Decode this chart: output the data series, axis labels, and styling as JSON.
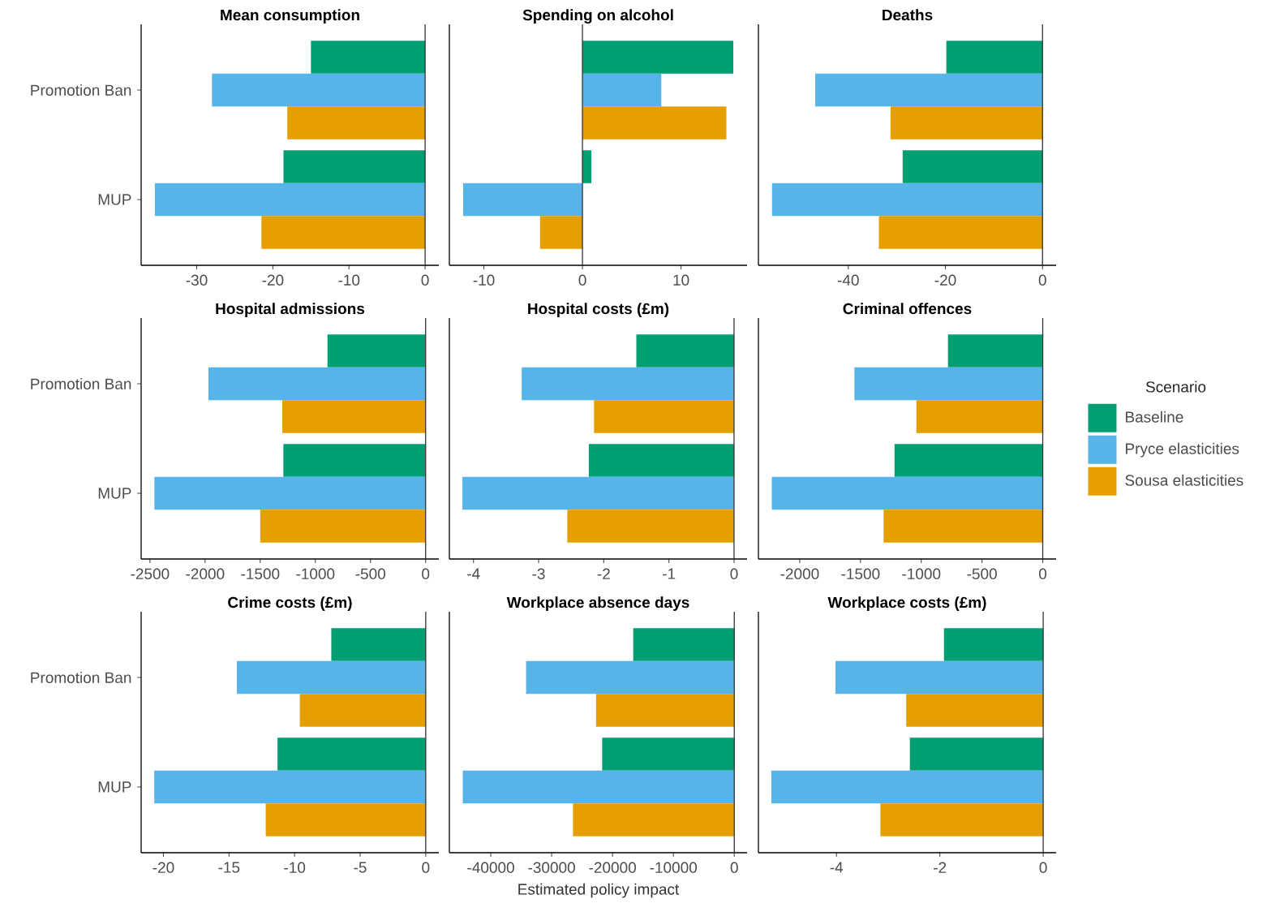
{
  "chart_data": [
    {
      "type": "bar",
      "orientation": "horizontal",
      "title": "Mean consumption",
      "categories": [
        "Promotion Ban",
        "MUP"
      ],
      "series": [
        {
          "color": "#009e73",
          "values": [
            -15.0,
            -18.6
          ]
        },
        {
          "color": "#56b4e9",
          "values": [
            -28.0,
            -35.5
          ]
        },
        {
          "color": "#e69f00",
          "values": [
            -18.1,
            -21.5
          ]
        }
      ],
      "xlim": [
        -37.3,
        1.8
      ],
      "xticks": [
        -30,
        -20,
        -10,
        0
      ],
      "ref_lines": [
        {
          "axis": "x",
          "value": 0,
          "color": "#333333"
        }
      ]
    },
    {
      "type": "bar",
      "orientation": "horizontal",
      "title": "Spending on alcohol",
      "categories": [
        null,
        null
      ],
      "series": [
        {
          "color": "#009e73",
          "values": [
            15.3,
            0.9
          ]
        },
        {
          "color": "#56b4e9",
          "values": [
            8.0,
            -12.1
          ]
        },
        {
          "color": "#e69f00",
          "values": [
            14.6,
            -4.3
          ]
        }
      ],
      "xlim": [
        -13.5,
        16.7
      ],
      "xticks": [
        -10,
        0,
        10
      ],
      "tick_labels": "x",
      "ref_lines": [
        {
          "axis": "x",
          "value": 0,
          "color": "#333333"
        }
      ]
    },
    {
      "type": "bar",
      "orientation": "horizontal",
      "title": "Deaths",
      "categories": [
        null,
        null
      ],
      "series": [
        {
          "color": "#009e73",
          "values": [
            -19.8,
            -28.8
          ]
        },
        {
          "color": "#56b4e9",
          "values": [
            -46.8,
            -55.7
          ]
        },
        {
          "color": "#e69f00",
          "values": [
            -31.3,
            -33.7
          ]
        }
      ],
      "xlim": [
        -58.5,
        2.8
      ],
      "xticks": [
        -40,
        -20,
        0
      ],
      "tick_labels": "x",
      "ref_lines": [
        {
          "axis": "x",
          "value": 0,
          "color": "#333333"
        }
      ]
    },
    {
      "type": "bar",
      "orientation": "horizontal",
      "title": "Hospital admissions",
      "categories": [
        "Promotion Ban",
        "MUP"
      ],
      "series": [
        {
          "color": "#009e73",
          "values": [
            -890,
            -1290
          ]
        },
        {
          "color": "#56b4e9",
          "values": [
            -1970,
            -2460
          ]
        },
        {
          "color": "#e69f00",
          "values": [
            -1300,
            -1500
          ]
        }
      ],
      "xlim": [
        -2580,
        120
      ],
      "xticks": [
        -2500,
        -2000,
        -1500,
        -1000,
        -500,
        0
      ],
      "ref_lines": [
        {
          "axis": "x",
          "value": 0,
          "color": "#333333"
        }
      ]
    },
    {
      "type": "bar",
      "orientation": "horizontal",
      "title": "Hospital costs (£m)",
      "categories": [
        null,
        null
      ],
      "series": [
        {
          "color": "#009e73",
          "values": [
            -1.5,
            -2.23
          ]
        },
        {
          "color": "#56b4e9",
          "values": [
            -3.26,
            -4.17
          ]
        },
        {
          "color": "#e69f00",
          "values": [
            -2.15,
            -2.56
          ]
        }
      ],
      "xlim": [
        -4.37,
        0.2
      ],
      "xticks": [
        -4,
        -3,
        -2,
        -1,
        0
      ],
      "tick_labels": "x",
      "ref_lines": [
        {
          "axis": "x",
          "value": 0,
          "color": "#333333"
        }
      ]
    },
    {
      "type": "bar",
      "orientation": "horizontal",
      "title": "Criminal offences",
      "categories": [
        null,
        null
      ],
      "series": [
        {
          "name": "Baseline",
          "color": "#009e73",
          "values": [
            -780,
            -1220
          ]
        },
        {
          "name": "Pryce elasticities",
          "color": "#56b4e9",
          "values": [
            -1550,
            -2230
          ]
        },
        {
          "name": "Sousa elasticities",
          "color": "#e69f00",
          "values": [
            -1040,
            -1310
          ]
        }
      ],
      "xlim": [
        -2340,
        110
      ],
      "xticks": [
        -2000,
        -1500,
        -1000,
        -500,
        0
      ],
      "tick_labels": "x",
      "legend": "right",
      "legend_title": "Scenario",
      "ref_lines": [
        {
          "axis": "x",
          "value": 0,
          "color": "#333333"
        }
      ]
    },
    {
      "type": "bar",
      "orientation": "horizontal",
      "title": "Crime costs (£m)",
      "categories": [
        "Promotion Ban",
        "MUP"
      ],
      "series": [
        {
          "color": "#009e73",
          "values": [
            -7.2,
            -11.3
          ]
        },
        {
          "color": "#56b4e9",
          "values": [
            -14.4,
            -20.7
          ]
        },
        {
          "color": "#e69f00",
          "values": [
            -9.6,
            -12.2
          ]
        }
      ],
      "xlim": [
        -21.7,
        1.0
      ],
      "xticks": [
        -20,
        -15,
        -10,
        -5,
        0
      ],
      "ref_lines": [
        {
          "axis": "x",
          "value": 0,
          "color": "#333333"
        }
      ]
    },
    {
      "type": "bar",
      "orientation": "horizontal",
      "title": "Workplace absence days",
      "xlabel": "Estimated policy impact",
      "categories": [
        null,
        null
      ],
      "series": [
        {
          "color": "#009e73",
          "values": [
            -16600,
            -21700
          ]
        },
        {
          "color": "#56b4e9",
          "values": [
            -34200,
            -44600
          ]
        },
        {
          "color": "#e69f00",
          "values": [
            -22700,
            -26500
          ]
        }
      ],
      "xlim": [
        -46800,
        2100
      ],
      "xticks": [
        -40000,
        -30000,
        -20000,
        -10000,
        0
      ],
      "tick_labels": "x",
      "ref_lines": [
        {
          "axis": "x",
          "value": 0,
          "color": "#333333"
        }
      ]
    },
    {
      "type": "bar",
      "orientation": "horizontal",
      "title": "Workplace costs (£m)",
      "categories": [
        null,
        null
      ],
      "series": [
        {
          "color": "#009e73",
          "values": [
            -1.92,
            -2.58
          ]
        },
        {
          "color": "#56b4e9",
          "values": [
            -4.02,
            -5.26
          ]
        },
        {
          "color": "#e69f00",
          "values": [
            -2.65,
            -3.15
          ]
        }
      ],
      "xlim": [
        -5.51,
        0.25
      ],
      "xticks": [
        -4,
        -2,
        0
      ],
      "tick_labels": "x",
      "ref_lines": [
        {
          "axis": "x",
          "value": 0,
          "color": "#333333"
        }
      ]
    }
  ]
}
